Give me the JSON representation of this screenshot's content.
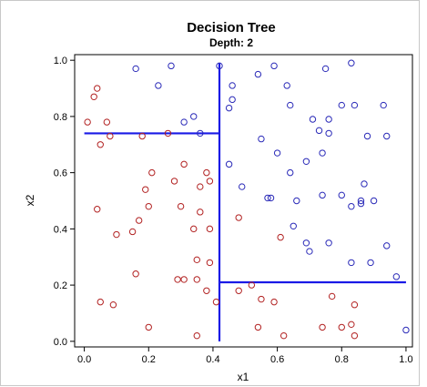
{
  "chart_data": {
    "type": "scatter",
    "title": "Decision Tree",
    "subtitle": "Depth: 2",
    "xlabel": "x1",
    "ylabel": "x2",
    "xlim": [
      -0.03,
      1.02
    ],
    "ylim": [
      -0.02,
      1.02
    ],
    "xticks": [
      "0.0",
      "0.2",
      "0.4",
      "0.6",
      "0.8",
      "1.0"
    ],
    "yticks": [
      "0.0",
      "0.2",
      "0.4",
      "0.6",
      "0.8",
      "1.0"
    ],
    "grid": false,
    "colors": {
      "class_red": "#b22222",
      "class_blue": "#2a2ab8",
      "split_line": "#1a1ae6"
    },
    "splits": [
      {
        "x": [
          0.42,
          0.42
        ],
        "y": [
          0.0,
          0.99
        ]
      },
      {
        "x": [
          0.0,
          0.42
        ],
        "y": [
          0.74,
          0.74
        ]
      },
      {
        "x": [
          0.42,
          1.0
        ],
        "y": [
          0.21,
          0.21
        ]
      }
    ],
    "series": [
      {
        "points": [
          [
            0.01,
            0.78
          ],
          [
            0.03,
            0.87
          ],
          [
            0.04,
            0.9
          ],
          [
            0.05,
            0.7
          ],
          [
            0.07,
            0.78
          ],
          [
            0.08,
            0.73
          ],
          [
            0.18,
            0.73
          ],
          [
            0.04,
            0.47
          ],
          [
            0.1,
            0.38
          ],
          [
            0.15,
            0.39
          ],
          [
            0.17,
            0.43
          ],
          [
            0.19,
            0.54
          ],
          [
            0.2,
            0.48
          ],
          [
            0.21,
            0.6
          ],
          [
            0.28,
            0.57
          ],
          [
            0.3,
            0.48
          ],
          [
            0.31,
            0.63
          ],
          [
            0.26,
            0.74
          ],
          [
            0.36,
            0.55
          ],
          [
            0.38,
            0.6
          ],
          [
            0.39,
            0.57
          ],
          [
            0.34,
            0.4
          ],
          [
            0.36,
            0.46
          ],
          [
            0.39,
            0.4
          ],
          [
            0.35,
            0.29
          ],
          [
            0.39,
            0.28
          ],
          [
            0.16,
            0.24
          ],
          [
            0.29,
            0.22
          ],
          [
            0.31,
            0.22
          ],
          [
            0.35,
            0.22
          ],
          [
            0.38,
            0.18
          ],
          [
            0.41,
            0.14
          ],
          [
            0.05,
            0.14
          ],
          [
            0.09,
            0.13
          ],
          [
            0.2,
            0.05
          ],
          [
            0.35,
            0.02
          ],
          [
            0.48,
            0.44
          ],
          [
            0.61,
            0.37
          ],
          [
            0.48,
            0.18
          ],
          [
            0.52,
            0.2
          ],
          [
            0.55,
            0.15
          ],
          [
            0.59,
            0.14
          ],
          [
            0.54,
            0.05
          ],
          [
            0.62,
            0.02
          ],
          [
            0.74,
            0.05
          ],
          [
            0.77,
            0.16
          ],
          [
            0.8,
            0.05
          ],
          [
            0.83,
            0.06
          ],
          [
            0.84,
            0.02
          ],
          [
            0.84,
            0.13
          ]
        ]
      },
      {
        "points": [
          [
            0.16,
            0.97
          ],
          [
            0.23,
            0.91
          ],
          [
            0.27,
            0.98
          ],
          [
            0.31,
            0.78
          ],
          [
            0.34,
            0.8
          ],
          [
            0.36,
            0.74
          ],
          [
            0.42,
            0.98
          ],
          [
            0.46,
            0.91
          ],
          [
            0.46,
            0.86
          ],
          [
            0.45,
            0.83
          ],
          [
            0.54,
            0.95
          ],
          [
            0.59,
            0.98
          ],
          [
            0.63,
            0.91
          ],
          [
            0.64,
            0.84
          ],
          [
            0.55,
            0.72
          ],
          [
            0.6,
            0.67
          ],
          [
            0.64,
            0.6
          ],
          [
            0.66,
            0.5
          ],
          [
            0.69,
            0.64
          ],
          [
            0.71,
            0.79
          ],
          [
            0.73,
            0.75
          ],
          [
            0.74,
            0.67
          ],
          [
            0.75,
            0.97
          ],
          [
            0.76,
            0.79
          ],
          [
            0.76,
            0.74
          ],
          [
            0.8,
            0.84
          ],
          [
            0.83,
            0.99
          ],
          [
            0.84,
            0.84
          ],
          [
            0.88,
            0.73
          ],
          [
            0.93,
            0.84
          ],
          [
            0.94,
            0.73
          ],
          [
            0.45,
            0.63
          ],
          [
            0.49,
            0.55
          ],
          [
            0.57,
            0.51
          ],
          [
            0.58,
            0.51
          ],
          [
            0.65,
            0.41
          ],
          [
            0.69,
            0.35
          ],
          [
            0.7,
            0.32
          ],
          [
            0.74,
            0.52
          ],
          [
            0.76,
            0.35
          ],
          [
            0.8,
            0.52
          ],
          [
            0.83,
            0.48
          ],
          [
            0.86,
            0.5
          ],
          [
            0.86,
            0.49
          ],
          [
            0.87,
            0.56
          ],
          [
            0.89,
            0.28
          ],
          [
            0.9,
            0.5
          ],
          [
            0.83,
            0.28
          ],
          [
            0.94,
            0.34
          ],
          [
            0.97,
            0.23
          ],
          [
            1.0,
            0.04
          ]
        ]
      }
    ]
  }
}
